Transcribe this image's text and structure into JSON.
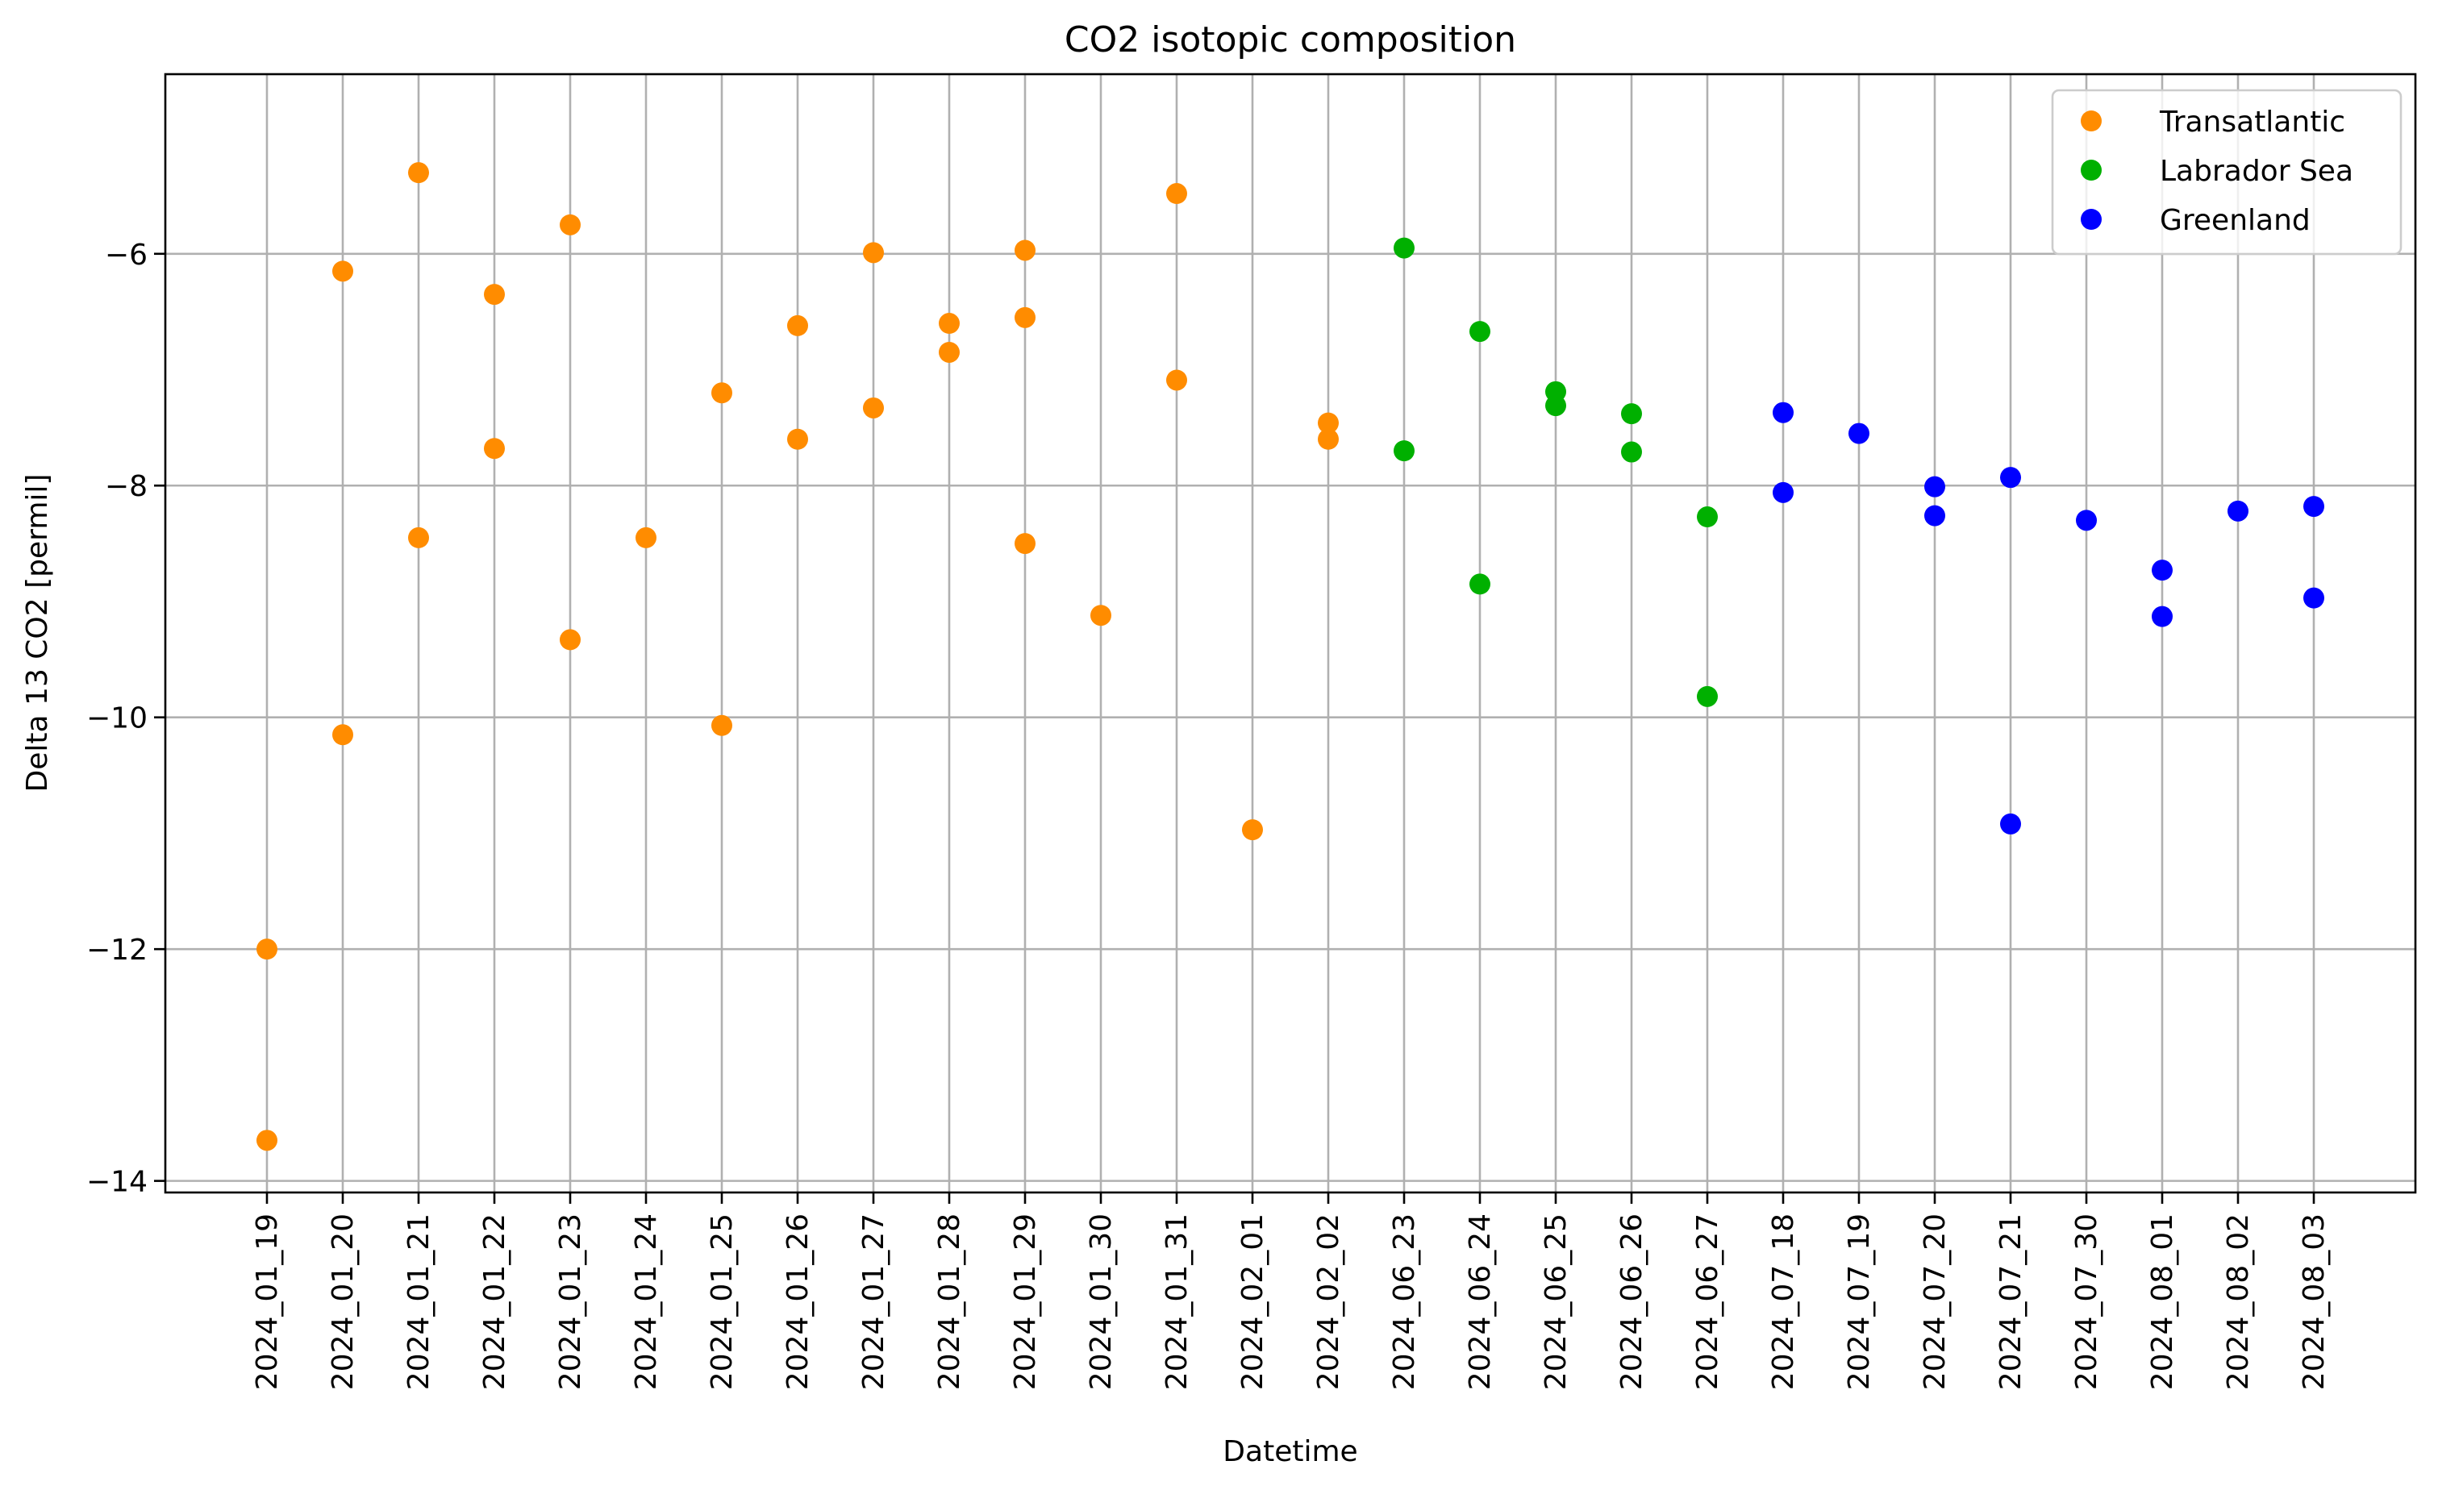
{
  "chart_data": {
    "type": "scatter",
    "title": "CO2 isotopic composition",
    "xlabel": "Datetime",
    "ylabel": "Delta 13 CO2 [permil]",
    "ylim": [
      -14.1,
      -4.45
    ],
    "yticks": [
      -14,
      -12,
      -10,
      -8,
      -6
    ],
    "grid": true,
    "legend_position": "top-right",
    "categories": [
      "2024_01_19",
      "2024_01_20",
      "2024_01_21",
      "2024_01_22",
      "2024_01_23",
      "2024_01_24",
      "2024_01_25",
      "2024_01_26",
      "2024_01_27",
      "2024_01_28",
      "2024_01_29",
      "2024_01_30",
      "2024_01_31",
      "2024_02_01",
      "2024_02_02",
      "2024_06_23",
      "2024_06_24",
      "2024_06_25",
      "2024_06_26",
      "2024_06_27",
      "2024_07_18",
      "2024_07_19",
      "2024_07_20",
      "2024_07_21",
      "2024_07_30",
      "2024_08_01",
      "2024_08_02",
      "2024_08_03"
    ],
    "series": [
      {
        "name": "Transatlantic",
        "color": "#ff8c00",
        "points": [
          [
            "2024_01_19",
            -12.0
          ],
          [
            "2024_01_19",
            -13.65
          ],
          [
            "2024_01_20",
            -6.15
          ],
          [
            "2024_01_20",
            -10.15
          ],
          [
            "2024_01_21",
            -5.3
          ],
          [
            "2024_01_21",
            -8.45
          ],
          [
            "2024_01_22",
            -6.35
          ],
          [
            "2024_01_22",
            -7.68
          ],
          [
            "2024_01_23",
            -5.75
          ],
          [
            "2024_01_23",
            -9.33
          ],
          [
            "2024_01_24",
            -8.45
          ],
          [
            "2024_01_25",
            -7.2
          ],
          [
            "2024_01_25",
            -10.07
          ],
          [
            "2024_01_26",
            -6.62
          ],
          [
            "2024_01_26",
            -7.6
          ],
          [
            "2024_01_27",
            -5.99
          ],
          [
            "2024_01_27",
            -7.33
          ],
          [
            "2024_01_28",
            -6.6
          ],
          [
            "2024_01_28",
            -6.85
          ],
          [
            "2024_01_29",
            -5.97
          ],
          [
            "2024_01_29",
            -6.55
          ],
          [
            "2024_01_29",
            -8.5
          ],
          [
            "2024_01_30",
            -9.12
          ],
          [
            "2024_01_31",
            -5.48
          ],
          [
            "2024_01_31",
            -7.09
          ],
          [
            "2024_02_01",
            -10.97
          ],
          [
            "2024_02_02",
            -7.46
          ],
          [
            "2024_02_02",
            -7.6
          ]
        ]
      },
      {
        "name": "Labrador Sea",
        "color": "#00b000",
        "points": [
          [
            "2024_06_23",
            -5.95
          ],
          [
            "2024_06_23",
            -7.7
          ],
          [
            "2024_06_24",
            -6.67
          ],
          [
            "2024_06_24",
            -8.85
          ],
          [
            "2024_06_25",
            -7.19
          ],
          [
            "2024_06_25",
            -7.31
          ],
          [
            "2024_06_26",
            -7.38
          ],
          [
            "2024_06_26",
            -7.71
          ],
          [
            "2024_06_27",
            -8.27
          ],
          [
            "2024_06_27",
            -9.82
          ]
        ]
      },
      {
        "name": "Greenland",
        "color": "#0000ff",
        "points": [
          [
            "2024_07_18",
            -7.37
          ],
          [
            "2024_07_18",
            -8.06
          ],
          [
            "2024_07_19",
            -7.55
          ],
          [
            "2024_07_20",
            -8.01
          ],
          [
            "2024_07_20",
            -8.26
          ],
          [
            "2024_07_21",
            -7.93
          ],
          [
            "2024_07_21",
            -10.92
          ],
          [
            "2024_07_30",
            -8.3
          ],
          [
            "2024_08_01",
            -8.73
          ],
          [
            "2024_08_01",
            -9.13
          ],
          [
            "2024_08_02",
            -8.22
          ],
          [
            "2024_08_03",
            -8.18
          ],
          [
            "2024_08_03",
            -8.97
          ]
        ]
      }
    ]
  }
}
